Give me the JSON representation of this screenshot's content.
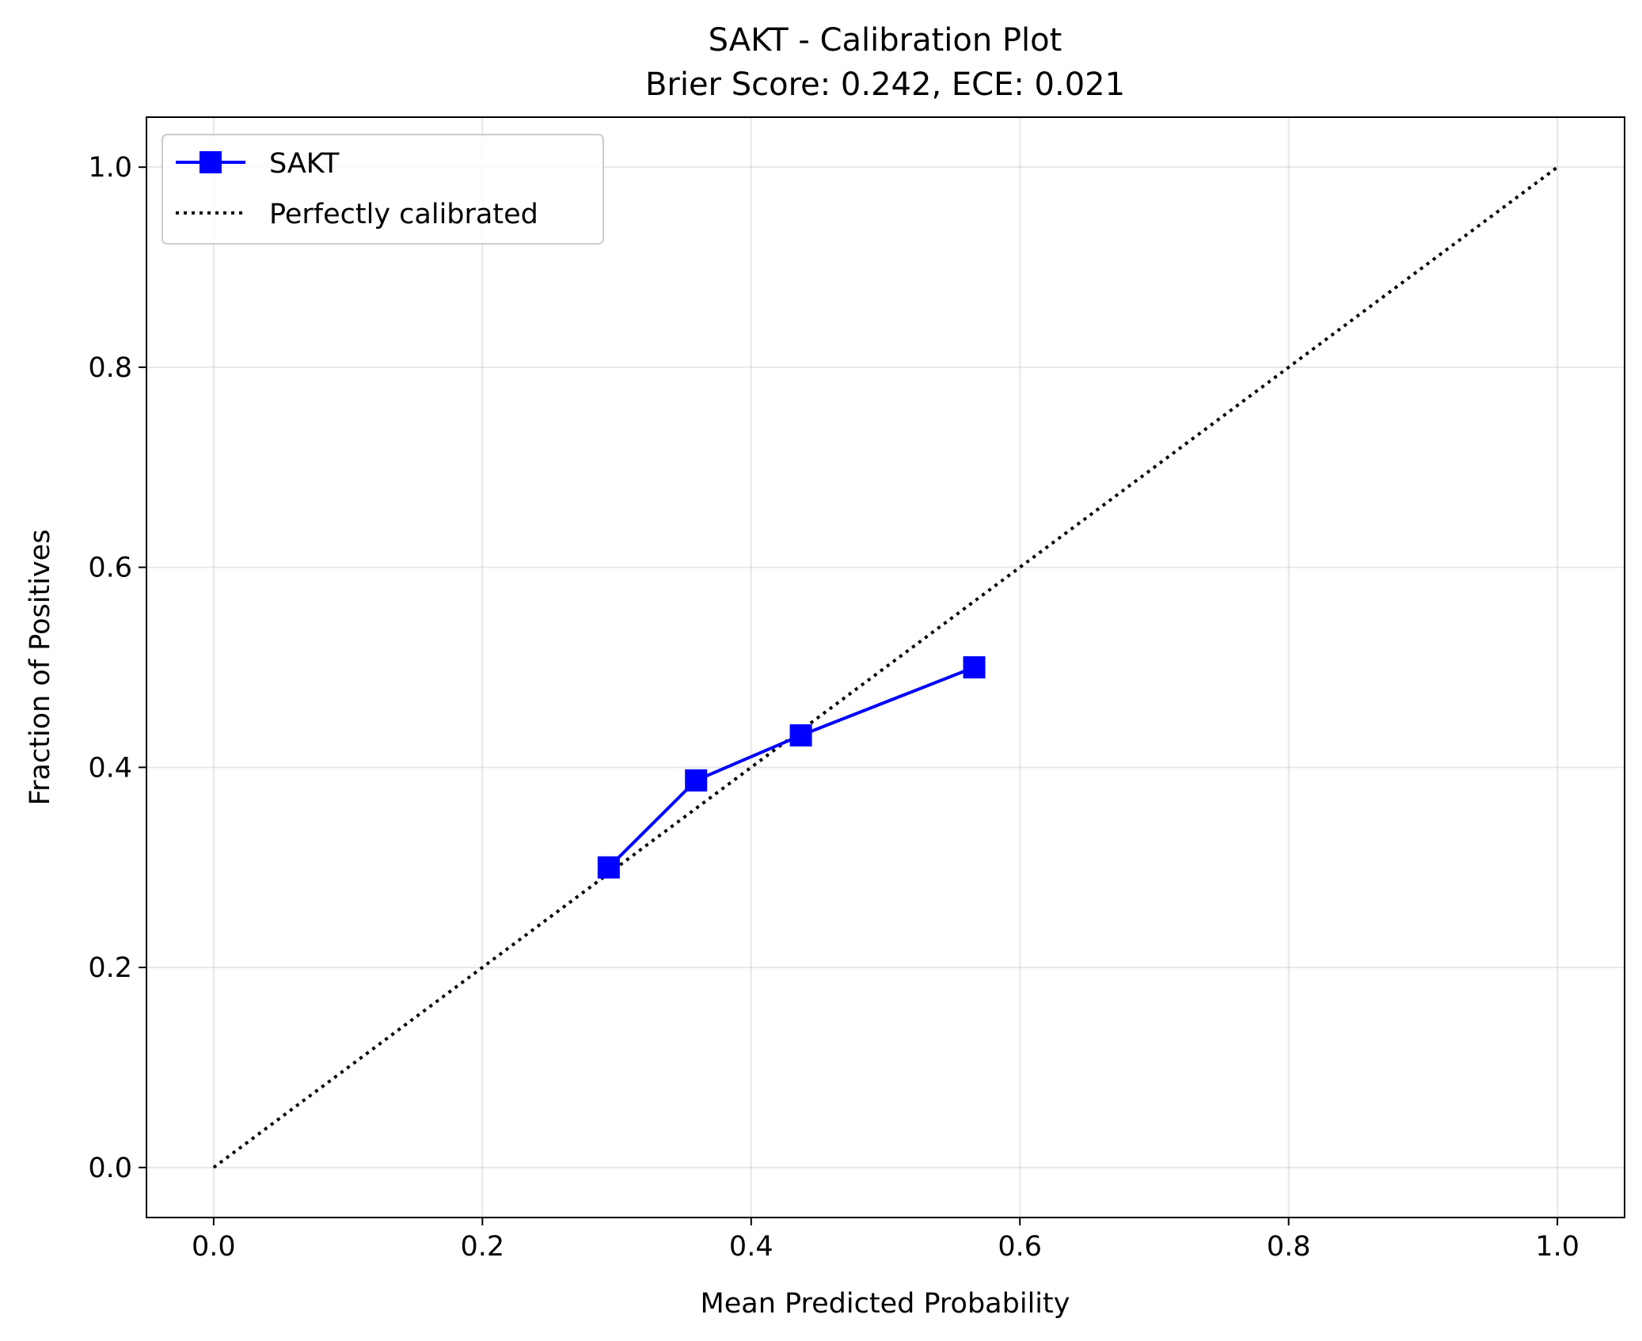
{
  "chart_data": {
    "type": "line",
    "title": "SAKT - Calibration Plot",
    "subtitle": "Brier Score: 0.242, ECE: 0.021",
    "xlabel": "Mean Predicted Probability",
    "ylabel": "Fraction of Positives",
    "xlim": [
      -0.05,
      1.05
    ],
    "ylim": [
      -0.05,
      1.05
    ],
    "xticks": [
      "0.0",
      "0.2",
      "0.4",
      "0.6",
      "0.8",
      "1.0"
    ],
    "yticks": [
      "0.0",
      "0.2",
      "0.4",
      "0.6",
      "0.8",
      "1.0"
    ],
    "grid": true,
    "legend_position": "top-left",
    "series": [
      {
        "name": "SAKT",
        "color": "#0000ff",
        "marker": "square",
        "line_style": "solid",
        "x": [
          0.294,
          0.359,
          0.437,
          0.566
        ],
        "y": [
          0.3,
          0.387,
          0.432,
          0.5
        ]
      },
      {
        "name": "Perfectly calibrated",
        "color": "#000000",
        "marker": "none",
        "line_style": "dotted",
        "x": [
          0.0,
          1.0
        ],
        "y": [
          0.0,
          1.0
        ]
      }
    ]
  }
}
